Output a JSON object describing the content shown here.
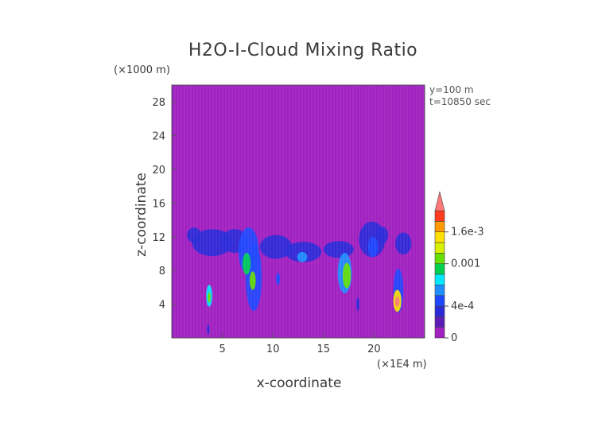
{
  "chart_data": {
    "type": "heatmap",
    "title": "H2O-I-Cloud Mixing Ratio",
    "xlabel": "x-coordinate",
    "ylabel": "z-coordinate",
    "x_unit": "(×1E4 m)",
    "y_unit": "(×1000 m)",
    "annotations": [
      "y=100 m",
      "t=10850 sec"
    ],
    "xlim": [
      0,
      25
    ],
    "ylim": [
      0,
      30
    ],
    "x_ticks": [
      5,
      10,
      15,
      20
    ],
    "y_ticks": [
      4,
      8,
      12,
      16,
      20,
      24,
      28
    ],
    "colorbar": {
      "ticks": [
        {
          "label": "0",
          "value": 0
        },
        {
          "label": "4e-4",
          "value": 0.0004
        },
        {
          "label": "0.001",
          "value": 0.001
        },
        {
          "label": "1.6e-3",
          "value": 0.0016
        }
      ],
      "levels": [
        0,
        0.0002,
        0.0003,
        0.0004,
        0.0005,
        0.0006,
        0.0008,
        0.001,
        0.0012,
        0.0014,
        0.0016,
        0.0018,
        0.002
      ],
      "colors": [
        "#a020c0",
        "#5a1db5",
        "#2a2ad8",
        "#1e48ff",
        "#1e90ff",
        "#00e8ff",
        "#00d050",
        "#66e000",
        "#d8f000",
        "#ffe000",
        "#ff9a00",
        "#ff3c1e",
        "#ff7878"
      ]
    },
    "background_color": "#a020c0",
    "features": [
      {
        "x": 2.2,
        "z": 12.2,
        "rx": 0.7,
        "rz": 0.9,
        "value": 0.0003
      },
      {
        "x": 4.0,
        "z": 11.3,
        "rx": 2.0,
        "rz": 1.6,
        "value": 0.00033
      },
      {
        "x": 6.2,
        "z": 11.5,
        "rx": 1.4,
        "rz": 1.4,
        "value": 0.0003
      },
      {
        "x": 7.6,
        "z": 10.3,
        "rx": 1.0,
        "rz": 2.8,
        "value": 0.00045
      },
      {
        "x": 8.1,
        "z": 7.2,
        "rx": 0.8,
        "rz": 4.0,
        "value": 0.00045
      },
      {
        "x": 7.4,
        "z": 8.8,
        "rx": 0.4,
        "rz": 1.3,
        "value": 0.0009
      },
      {
        "x": 8.0,
        "z": 6.8,
        "rx": 0.3,
        "rz": 1.1,
        "value": 0.0011
      },
      {
        "x": 10.3,
        "z": 10.8,
        "rx": 1.6,
        "rz": 1.4,
        "value": 0.00033
      },
      {
        "x": 13.0,
        "z": 10.2,
        "rx": 1.8,
        "rz": 1.2,
        "value": 0.00035
      },
      {
        "x": 12.9,
        "z": 9.6,
        "rx": 0.5,
        "rz": 0.6,
        "value": 0.0005
      },
      {
        "x": 16.5,
        "z": 10.5,
        "rx": 1.5,
        "rz": 1.0,
        "value": 0.00033
      },
      {
        "x": 17.1,
        "z": 7.7,
        "rx": 0.7,
        "rz": 2.4,
        "value": 0.0005
      },
      {
        "x": 17.3,
        "z": 7.4,
        "rx": 0.4,
        "rz": 1.5,
        "value": 0.0011
      },
      {
        "x": 19.8,
        "z": 11.7,
        "rx": 1.3,
        "rz": 2.1,
        "value": 0.0003
      },
      {
        "x": 19.9,
        "z": 10.8,
        "rx": 0.5,
        "rz": 1.2,
        "value": 0.00045
      },
      {
        "x": 20.8,
        "z": 12.2,
        "rx": 0.6,
        "rz": 1.0,
        "value": 0.0003
      },
      {
        "x": 22.9,
        "z": 11.2,
        "rx": 0.8,
        "rz": 1.3,
        "value": 0.0003
      },
      {
        "x": 22.4,
        "z": 5.6,
        "rx": 0.5,
        "rz": 2.6,
        "value": 0.0004
      },
      {
        "x": 22.3,
        "z": 4.4,
        "rx": 0.4,
        "rz": 1.3,
        "value": 0.0014
      },
      {
        "x": 22.3,
        "z": 4.3,
        "rx": 0.22,
        "rz": 0.6,
        "value": 0.002
      },
      {
        "x": 3.7,
        "z": 5.0,
        "rx": 0.3,
        "rz": 1.3,
        "value": 0.0006
      },
      {
        "x": 3.7,
        "z": 4.8,
        "rx": 0.15,
        "rz": 0.6,
        "value": 0.0011
      },
      {
        "x": 10.5,
        "z": 7.0,
        "rx": 0.2,
        "rz": 0.7,
        "value": 0.00045
      },
      {
        "x": 3.6,
        "z": 1.0,
        "rx": 0.12,
        "rz": 0.6,
        "value": 0.0003
      },
      {
        "x": 18.4,
        "z": 4.0,
        "rx": 0.15,
        "rz": 0.8,
        "value": 0.00033
      }
    ]
  }
}
